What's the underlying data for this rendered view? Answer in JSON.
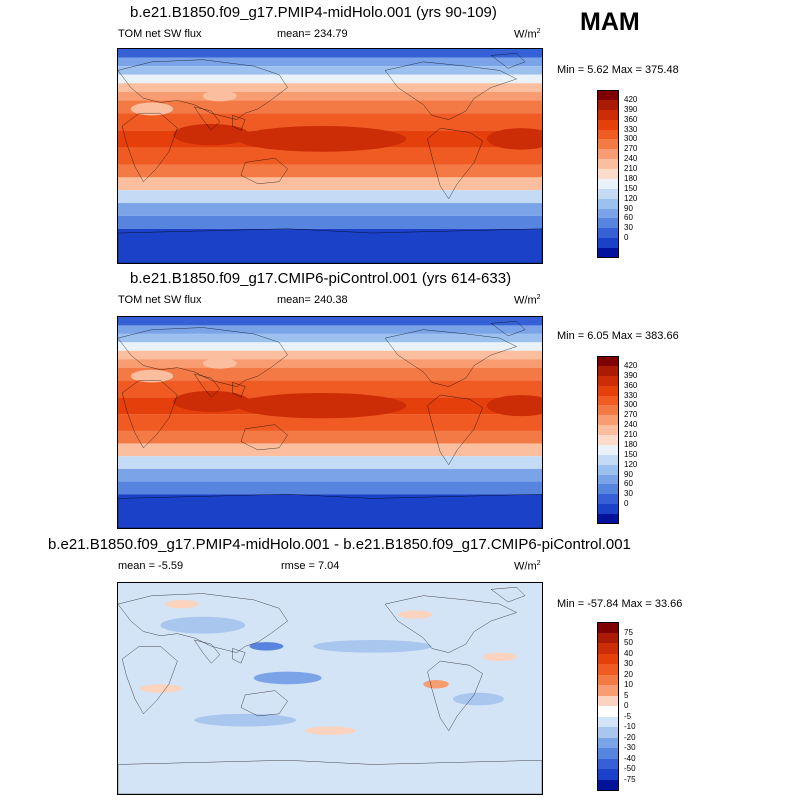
{
  "season": "MAM",
  "panels": [
    {
      "title": "b.e21.B1850.f09_g17.PMIP4-midHolo.001 (yrs 90-109)",
      "left_label": "TOM net SW flux",
      "center_label": "mean= 234.79",
      "units": "W/m",
      "units_sup": "2",
      "min_label": "Min =",
      "min_value": "5.62",
      "max_label": "Max =",
      "max_value": "375.48",
      "map_style": "abs",
      "colorbar": {
        "ticks": [
          "420",
          "390",
          "360",
          "330",
          "300",
          "270",
          "240",
          "210",
          "180",
          "150",
          "120",
          "90",
          "60",
          "30",
          "0"
        ],
        "colors": [
          "#7f0000",
          "#ab1a03",
          "#cc2c06",
          "#e5400b",
          "#f05a23",
          "#f47a45",
          "#f89c72",
          "#fbbfa0",
          "#fddccb",
          "#e9f1fb",
          "#c3dbf5",
          "#9cc1ef",
          "#7ba3e8",
          "#5784df",
          "#3661d6",
          "#1a41c7",
          "#00139a"
        ]
      }
    },
    {
      "title": "b.e21.B1850.f09_g17.CMIP6-piControl.001 (yrs 614-633)",
      "left_label": "TOM net SW flux",
      "center_label": "mean= 240.38",
      "units": "W/m",
      "units_sup": "2",
      "min_label": "Min =",
      "min_value": "6.05",
      "max_label": "Max =",
      "max_value": "383.66",
      "map_style": "abs",
      "colorbar": {
        "ticks": [
          "420",
          "390",
          "360",
          "330",
          "300",
          "270",
          "240",
          "210",
          "180",
          "150",
          "120",
          "90",
          "60",
          "30",
          "0"
        ],
        "colors": [
          "#7f0000",
          "#ab1a03",
          "#cc2c06",
          "#e5400b",
          "#f05a23",
          "#f47a45",
          "#f89c72",
          "#fbbfa0",
          "#fddccb",
          "#e9f1fb",
          "#c3dbf5",
          "#9cc1ef",
          "#7ba3e8",
          "#5784df",
          "#3661d6",
          "#1a41c7",
          "#00139a"
        ]
      }
    },
    {
      "title": "b.e21.B1850.f09_g17.PMIP4-midHolo.001 - b.e21.B1850.f09_g17.CMIP6-piControl.001",
      "left_label": "mean =  -5.59",
      "center_label": "rmse =  7.04",
      "units": "W/m",
      "units_sup": "2",
      "min_label": "Min =",
      "min_value": "-57.84",
      "max_label": "Max =",
      "max_value": "33.66",
      "map_style": "diff",
      "colorbar": {
        "ticks": [
          "75",
          "50",
          "40",
          "30",
          "20",
          "10",
          "5",
          "0",
          "-5",
          "-10",
          "-20",
          "-30",
          "-40",
          "-50",
          "-75"
        ],
        "colors": [
          "#7f0000",
          "#ab1a03",
          "#cc2c06",
          "#e5400b",
          "#f05a23",
          "#f47a45",
          "#f89c72",
          "#fbd3bf",
          "#ffffff",
          "#d4e4f7",
          "#a9c6ef",
          "#7ba3e8",
          "#5784df",
          "#3661d6",
          "#1a41c7",
          "#00139a"
        ]
      }
    }
  ]
}
